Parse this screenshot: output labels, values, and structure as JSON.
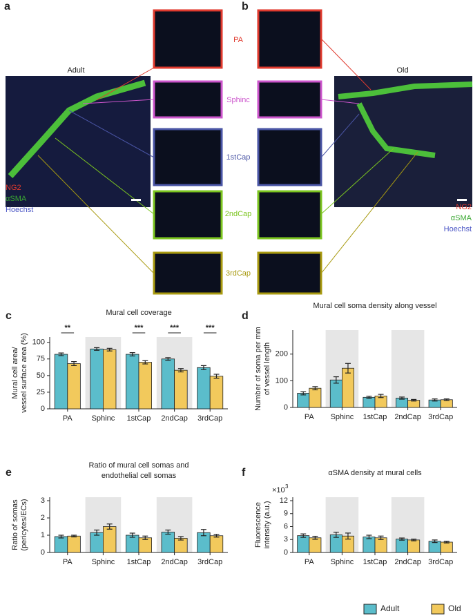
{
  "panel_a": {
    "letter": "a",
    "title": "Adult",
    "stains": [
      "NG2",
      "αSMA",
      "Hoechst"
    ]
  },
  "panel_b": {
    "letter": "b",
    "title": "Old",
    "stains": [
      "NG2",
      "αSMA",
      "Hoechst"
    ]
  },
  "inset_labels": [
    "PA",
    "Sphinc",
    "1stCap",
    "2ndCap",
    "3rdCap"
  ],
  "chart_data": [
    {
      "type": "bar",
      "panel": "c",
      "title": [
        "Mural cell coverage"
      ],
      "ylabel": [
        "Mural cell area/",
        "vessel surface area (%)"
      ],
      "categories": [
        "PA",
        "Sphinc",
        "1stCap",
        "2ndCap",
        "3rdCap"
      ],
      "series": [
        {
          "color": "#5bbdcb",
          "values": [
            82,
            90,
            82,
            75,
            62
          ],
          "errors": [
            2,
            2,
            2.5,
            2,
            3
          ]
        },
        {
          "color": "#f2c95c",
          "values": [
            68,
            89,
            70,
            58,
            49
          ],
          "errors": [
            3,
            2,
            2.5,
            2.5,
            3
          ]
        }
      ],
      "ylim": [
        0,
        108
      ],
      "yticks": [
        0,
        25,
        50,
        75,
        100
      ],
      "shaded_categories": [
        1,
        3
      ],
      "significance": [
        "**",
        null,
        "***",
        "***",
        "***"
      ]
    },
    {
      "type": "bar",
      "panel": "d",
      "title": [
        "Mural cell soma density along vessel"
      ],
      "ylabel": [
        "Number of soma per mm",
        "of vessel length"
      ],
      "categories": [
        "PA",
        "Sphinc",
        "1stCap",
        "2ndCap",
        "3rdCap"
      ],
      "series": [
        {
          "color": "#5bbdcb",
          "values": [
            53,
            103,
            38,
            35,
            28
          ],
          "errors": [
            6,
            12,
            4,
            4,
            4
          ]
        },
        {
          "color": "#f2c95c",
          "values": [
            72,
            147,
            43,
            27,
            29
          ],
          "errors": [
            6,
            18,
            6,
            3,
            3
          ]
        }
      ],
      "ylim": [
        0,
        290
      ],
      "yticks": [
        0,
        100,
        200
      ],
      "shaded_categories": [
        1,
        3
      ]
    },
    {
      "type": "bar",
      "panel": "e",
      "title": [
        "Ratio of mural cell somas and",
        "endothelial cell somas"
      ],
      "ylabel": [
        "Ratio of somas",
        "(pericytes/ECs)"
      ],
      "categories": [
        "PA",
        "Sphinc",
        "1stCap",
        "2ndCap",
        "3rdCap"
      ],
      "series": [
        {
          "color": "#5bbdcb",
          "values": [
            0.92,
            1.15,
            1.0,
            1.18,
            1.15
          ],
          "errors": [
            0.08,
            0.15,
            0.12,
            0.12,
            0.18
          ]
        },
        {
          "color": "#f2c95c",
          "values": [
            0.95,
            1.5,
            0.85,
            0.82,
            0.97
          ],
          "errors": [
            0.05,
            0.15,
            0.1,
            0.1,
            0.08
          ]
        }
      ],
      "ylim": [
        0,
        3.2
      ],
      "yticks": [
        0,
        1,
        2,
        3
      ],
      "shaded_categories": [
        1,
        3
      ]
    },
    {
      "type": "bar",
      "panel": "f",
      "title": [
        "αSMA density at mural cells"
      ],
      "ylabel": [
        "Fluorescence",
        "intensity (a.u.)"
      ],
      "y_multiplier": {
        "base": "×10",
        "exponent": "3"
      },
      "categories": [
        "PA",
        "Sphinc",
        "1stCap",
        "2ndCap",
        "3rdCap"
      ],
      "series": [
        {
          "name": "Adult",
          "color": "#5bbdcb",
          "values": [
            3.9,
            4.1,
            3.6,
            3.1,
            2.6
          ],
          "errors": [
            0.4,
            0.6,
            0.4,
            0.25,
            0.3
          ]
        },
        {
          "name": "Old",
          "color": "#f2c95c",
          "values": [
            3.4,
            3.8,
            3.4,
            2.9,
            2.4
          ],
          "errors": [
            0.35,
            0.7,
            0.4,
            0.2,
            0.2
          ]
        }
      ],
      "ylim": [
        0,
        12.8
      ],
      "yticks": [
        0,
        3,
        6,
        9,
        12
      ],
      "shaded_categories": [
        1,
        3
      ],
      "legend": "bottom-right"
    }
  ]
}
